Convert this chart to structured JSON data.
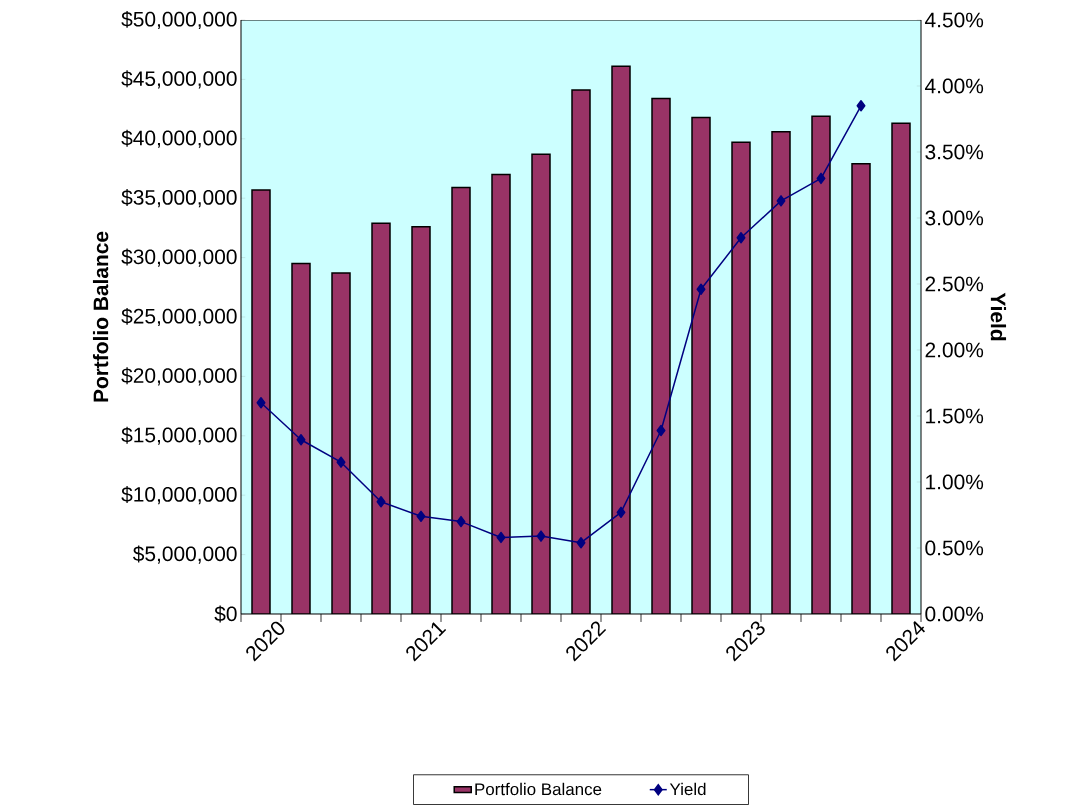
{
  "chart_data": {
    "type": "bar",
    "ylabel": "Portfolio Balance",
    "y2label": "Yield",
    "categories": [
      "2020",
      null,
      null,
      null,
      "2021",
      null,
      null,
      null,
      "2022",
      null,
      null,
      null,
      "2023",
      null,
      null,
      null,
      "2024"
    ],
    "series": [
      {
        "name": "Portfolio Balance",
        "color": "#993366",
        "values": [
          35700000,
          29500000,
          28700000,
          32900000,
          32600000,
          35900000,
          37000000,
          38700000,
          44100000,
          46100000,
          43400000,
          41800000,
          39700000,
          40600000,
          41900000,
          37900000,
          41300000
        ]
      },
      {
        "name": "Yield",
        "type": "line",
        "axis": "y2",
        "color": "#000080",
        "marker": "diamond",
        "values": [
          1.6,
          1.32,
          1.15,
          0.85,
          0.74,
          0.7,
          0.58,
          0.59,
          0.54,
          0.77,
          1.39,
          2.46,
          2.85,
          3.13,
          3.3,
          3.85,
          null
        ]
      }
    ],
    "ylim": [
      0,
      50000000
    ],
    "yticks": [
      {
        "value": 0,
        "label": "$0"
      },
      {
        "value": 5000000,
        "label": "$5,000,000"
      },
      {
        "value": 10000000,
        "label": "$10,000,000"
      },
      {
        "value": 15000000,
        "label": "$15,000,000"
      },
      {
        "value": 20000000,
        "label": "$20,000,000"
      },
      {
        "value": 25000000,
        "label": "$25,000,000"
      },
      {
        "value": 30000000,
        "label": "$30,000,000"
      },
      {
        "value": 35000000,
        "label": "$35,000,000"
      },
      {
        "value": 40000000,
        "label": "$40,000,000"
      },
      {
        "value": 45000000,
        "label": "$45,000,000"
      },
      {
        "value": 50000000,
        "label": "$50,000,000"
      }
    ],
    "y2lim": [
      0,
      4.5
    ],
    "y2ticks": [
      {
        "value": 0,
        "label": "0.00%"
      },
      {
        "value": 0.5,
        "label": "0.50%"
      },
      {
        "value": 1,
        "label": "1.00%"
      },
      {
        "value": 1.5,
        "label": "1.50%"
      },
      {
        "value": 2,
        "label": "2.00%"
      },
      {
        "value": 2.5,
        "label": "2.50%"
      },
      {
        "value": 3,
        "label": "3.00%"
      },
      {
        "value": 3.5,
        "label": "3.50%"
      },
      {
        "value": 4,
        "label": "4.00%"
      },
      {
        "value": 4.5,
        "label": "4.50%"
      }
    ],
    "legend": "bottom"
  }
}
